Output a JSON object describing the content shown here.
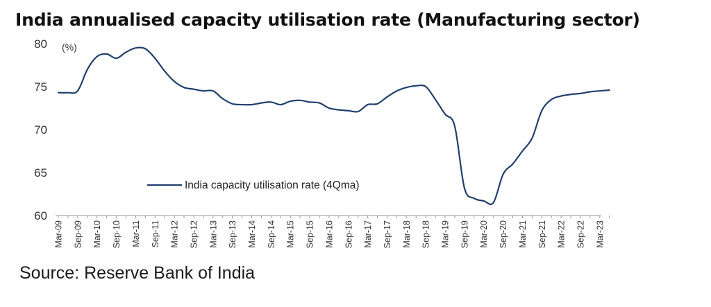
{
  "source": "Source: Reserve Bank of India",
  "chart_data": {
    "type": "line",
    "title": "India annualised capacity utilisation rate (Manufacturing sector)",
    "ylabel": "(%)",
    "ylim": [
      60,
      80
    ],
    "yticks": [
      60,
      65,
      70,
      75,
      80
    ],
    "grid": false,
    "legend_position": "center",
    "line_color": "#1f3f6e",
    "x_tick_labels": [
      "Mar-09",
      "Sep-09",
      "Mar-10",
      "Sep-10",
      "Mar-11",
      "Sep-11",
      "Mar-12",
      "Sep-12",
      "Mar-13",
      "Sep-13",
      "Mar-14",
      "Sep-14",
      "Mar-15",
      "Sep-15",
      "Mar-16",
      "Sep-16",
      "Mar-17",
      "Sep-17",
      "Mar-18",
      "Sep-18",
      "Mar-19",
      "Sep-19",
      "Mar-20",
      "Sep-20",
      "Mar-21",
      "Sep-21",
      "Mar-22",
      "Sep-22",
      "Mar-23"
    ],
    "series": [
      {
        "name": "India capacity utilisation rate (4Qma)",
        "x": [
          "Mar-09",
          "Jun-09",
          "Sep-09",
          "Dec-09",
          "Mar-10",
          "Jun-10",
          "Sep-10",
          "Dec-10",
          "Mar-11",
          "Jun-11",
          "Sep-11",
          "Dec-11",
          "Mar-12",
          "Jun-12",
          "Sep-12",
          "Dec-12",
          "Mar-13",
          "Jun-13",
          "Sep-13",
          "Dec-13",
          "Mar-14",
          "Jun-14",
          "Sep-14",
          "Dec-14",
          "Mar-15",
          "Jun-15",
          "Sep-15",
          "Dec-15",
          "Mar-16",
          "Jun-16",
          "Sep-16",
          "Dec-16",
          "Mar-17",
          "Jun-17",
          "Sep-17",
          "Dec-17",
          "Mar-18",
          "Jun-18",
          "Sep-18",
          "Dec-18",
          "Mar-19",
          "Jun-19",
          "Sep-19",
          "Dec-19",
          "Mar-20",
          "Jun-20",
          "Sep-20",
          "Dec-20",
          "Mar-21",
          "Jun-21",
          "Sep-21",
          "Dec-21",
          "Mar-22",
          "Jun-22",
          "Sep-22",
          "Dec-22",
          "Mar-23",
          "Jun-23"
        ],
        "values": [
          74.3,
          74.3,
          74.5,
          77.0,
          78.5,
          78.8,
          78.3,
          79.0,
          79.5,
          79.4,
          78.3,
          76.8,
          75.6,
          74.9,
          74.7,
          74.5,
          74.5,
          73.6,
          73.0,
          72.9,
          72.9,
          73.1,
          73.2,
          72.9,
          73.3,
          73.4,
          73.2,
          73.1,
          72.5,
          72.3,
          72.2,
          72.1,
          72.9,
          73.0,
          73.8,
          74.5,
          74.9,
          75.1,
          75.0,
          73.5,
          71.8,
          70.4,
          63.2,
          62.0,
          61.7,
          61.5,
          64.8,
          66.0,
          67.5,
          69.0,
          72.2,
          73.5,
          73.9,
          74.1,
          74.2,
          74.4,
          74.5,
          74.6
        ]
      }
    ]
  }
}
